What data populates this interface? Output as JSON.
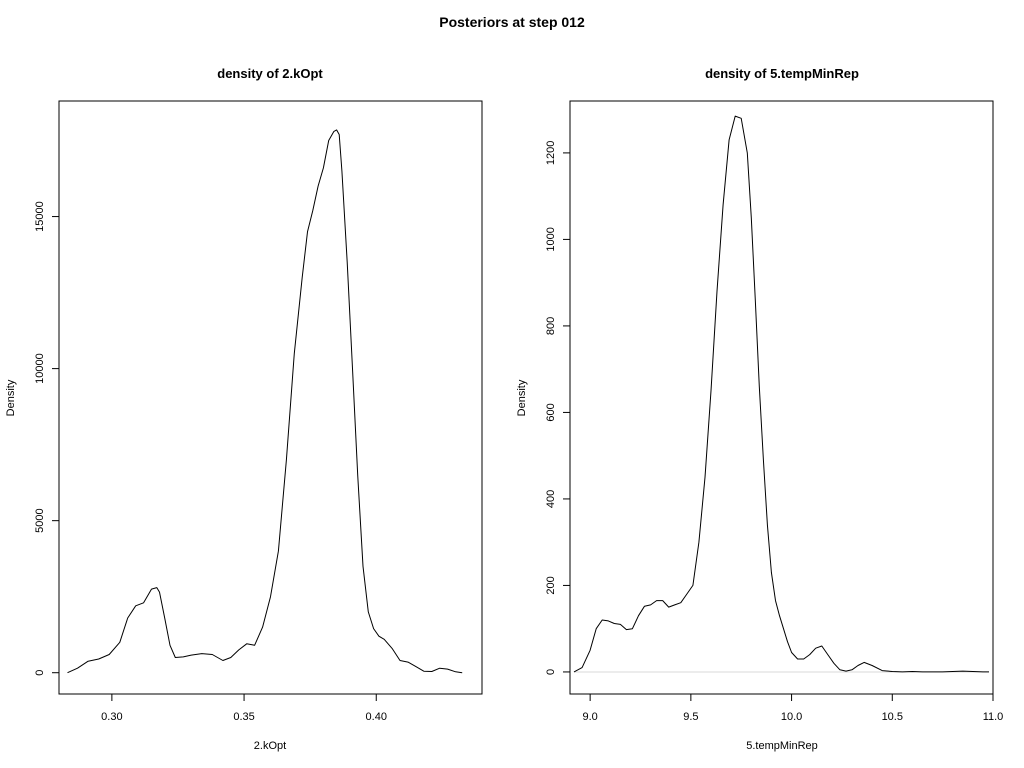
{
  "main_title": "Posteriors at step 012",
  "chart_data": [
    {
      "type": "line",
      "title": "density of 2.kOpt",
      "xlabel": "2.kOpt",
      "ylabel": "Density",
      "xlim": [
        0.28,
        0.44
      ],
      "ylim": [
        -700,
        18800
      ],
      "x_ticks": [
        0.3,
        0.35,
        0.4
      ],
      "x_tick_labels": [
        "0.30",
        "0.35",
        "0.40"
      ],
      "y_ticks": [
        0,
        5000,
        10000,
        15000
      ],
      "y_tick_labels": [
        "0",
        "5000",
        "10000",
        "15000"
      ],
      "grid": false,
      "baseline": false,
      "series": [
        {
          "x": [
            0.2832,
            0.287,
            0.291,
            0.295,
            0.299,
            0.303,
            0.306,
            0.309,
            0.312,
            0.315,
            0.317,
            0.318,
            0.32,
            0.322,
            0.324,
            0.327,
            0.33,
            0.334,
            0.338,
            0.342,
            0.345,
            0.348,
            0.351,
            0.354,
            0.357,
            0.36,
            0.363,
            0.366,
            0.369,
            0.372,
            0.374,
            0.376,
            0.378,
            0.38,
            0.382,
            0.384,
            0.385,
            0.386,
            0.387,
            0.389,
            0.391,
            0.393,
            0.395,
            0.397,
            0.399,
            0.401,
            0.403,
            0.406,
            0.409,
            0.412,
            0.415,
            0.418,
            0.421,
            0.424,
            0.427,
            0.43,
            0.4325
          ],
          "y": [
            0,
            150,
            380,
            450,
            600,
            1000,
            1800,
            2200,
            2300,
            2750,
            2800,
            2650,
            1800,
            900,
            500,
            520,
            580,
            630,
            600,
            400,
            500,
            750,
            950,
            900,
            1500,
            2500,
            4000,
            7000,
            10500,
            13000,
            14500,
            15200,
            16000,
            16600,
            17500,
            17800,
            17850,
            17700,
            16500,
            13500,
            10000,
            6500,
            3500,
            2000,
            1450,
            1200,
            1100,
            800,
            400,
            350,
            200,
            50,
            40,
            150,
            120,
            30,
            0
          ]
        }
      ]
    },
    {
      "type": "line",
      "title": "density of 5.tempMinRep",
      "xlabel": "5.tempMinRep",
      "ylabel": "Density",
      "xlim": [
        8.9,
        11.0
      ],
      "ylim": [
        -51,
        1320
      ],
      "x_ticks": [
        9.0,
        9.5,
        10.0,
        10.5,
        11.0
      ],
      "x_tick_labels": [
        "9.0",
        "9.5",
        "10.0",
        "10.5",
        "11.0"
      ],
      "y_ticks": [
        0,
        200,
        400,
        600,
        800,
        1000,
        1200
      ],
      "y_tick_labels": [
        "0",
        "200",
        "400",
        "600",
        "800",
        "1000",
        "1200"
      ],
      "grid": false,
      "baseline": true,
      "series": [
        {
          "x": [
            8.92,
            8.96,
            9.0,
            9.03,
            9.06,
            9.09,
            9.12,
            9.15,
            9.18,
            9.21,
            9.24,
            9.27,
            9.3,
            9.33,
            9.36,
            9.39,
            9.42,
            9.45,
            9.48,
            9.51,
            9.54,
            9.57,
            9.6,
            9.63,
            9.66,
            9.69,
            9.72,
            9.75,
            9.78,
            9.8,
            9.82,
            9.84,
            9.86,
            9.88,
            9.9,
            9.92,
            9.94,
            9.96,
            9.98,
            10.0,
            10.03,
            10.06,
            10.09,
            10.12,
            10.15,
            10.18,
            10.21,
            10.24,
            10.27,
            10.3,
            10.33,
            10.36,
            10.4,
            10.45,
            10.5,
            10.55,
            10.6,
            10.65,
            10.7,
            10.75,
            10.8,
            10.85,
            10.9,
            10.95,
            10.98
          ],
          "y": [
            0,
            10,
            50,
            100,
            120,
            118,
            112,
            110,
            98,
            100,
            130,
            152,
            155,
            165,
            165,
            150,
            155,
            160,
            180,
            200,
            300,
            450,
            650,
            880,
            1080,
            1230,
            1285,
            1280,
            1200,
            1050,
            860,
            660,
            490,
            340,
            230,
            165,
            130,
            100,
            70,
            45,
            30,
            30,
            40,
            55,
            60,
            40,
            20,
            5,
            2,
            5,
            15,
            22,
            15,
            3,
            1,
            0,
            1,
            0,
            0,
            0,
            1,
            2,
            1,
            0,
            0
          ]
        }
      ]
    }
  ]
}
